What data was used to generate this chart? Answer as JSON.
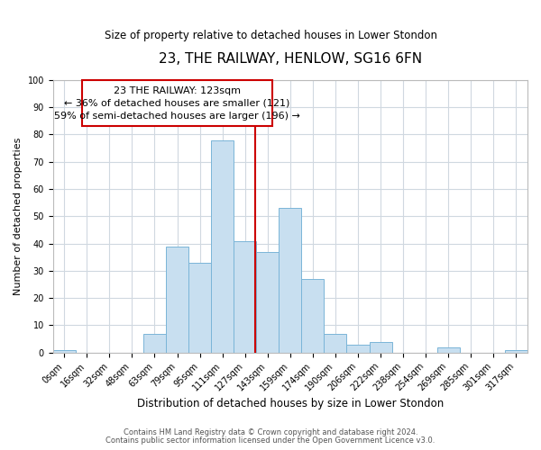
{
  "title": "23, THE RAILWAY, HENLOW, SG16 6FN",
  "subtitle": "Size of property relative to detached houses in Lower Stondon",
  "xlabel": "Distribution of detached houses by size in Lower Stondon",
  "ylabel": "Number of detached properties",
  "bar_labels": [
    "0sqm",
    "16sqm",
    "32sqm",
    "48sqm",
    "63sqm",
    "79sqm",
    "95sqm",
    "111sqm",
    "127sqm",
    "143sqm",
    "159sqm",
    "174sqm",
    "190sqm",
    "206sqm",
    "222sqm",
    "238sqm",
    "254sqm",
    "269sqm",
    "285sqm",
    "301sqm",
    "317sqm"
  ],
  "bar_values": [
    1,
    0,
    0,
    0,
    7,
    39,
    33,
    78,
    41,
    37,
    53,
    27,
    7,
    3,
    4,
    0,
    0,
    2,
    0,
    0,
    1
  ],
  "bar_color": "#c8dff0",
  "bar_edge_color": "#7ab5d8",
  "grid_color": "#d0d8e0",
  "vline_x_index": 8,
  "vline_color": "#cc0000",
  "ann_line1": "23 THE RAILWAY: 123sqm",
  "ann_line2": "← 36% of detached houses are smaller (121)",
  "ann_line3": "59% of semi-detached houses are larger (196) →",
  "annotation_box_color": "#ffffff",
  "annotation_box_edge_color": "#cc0000",
  "ylim": [
    0,
    100
  ],
  "yticks": [
    0,
    10,
    20,
    30,
    40,
    50,
    60,
    70,
    80,
    90,
    100
  ],
  "footer_line1": "Contains HM Land Registry data © Crown copyright and database right 2024.",
  "footer_line2": "Contains public sector information licensed under the Open Government Licence v3.0.",
  "title_fontsize": 11,
  "subtitle_fontsize": 8.5,
  "ylabel_fontsize": 8,
  "xlabel_fontsize": 8.5,
  "tick_fontsize": 7,
  "annotation_fontsize": 8,
  "footer_fontsize": 6
}
